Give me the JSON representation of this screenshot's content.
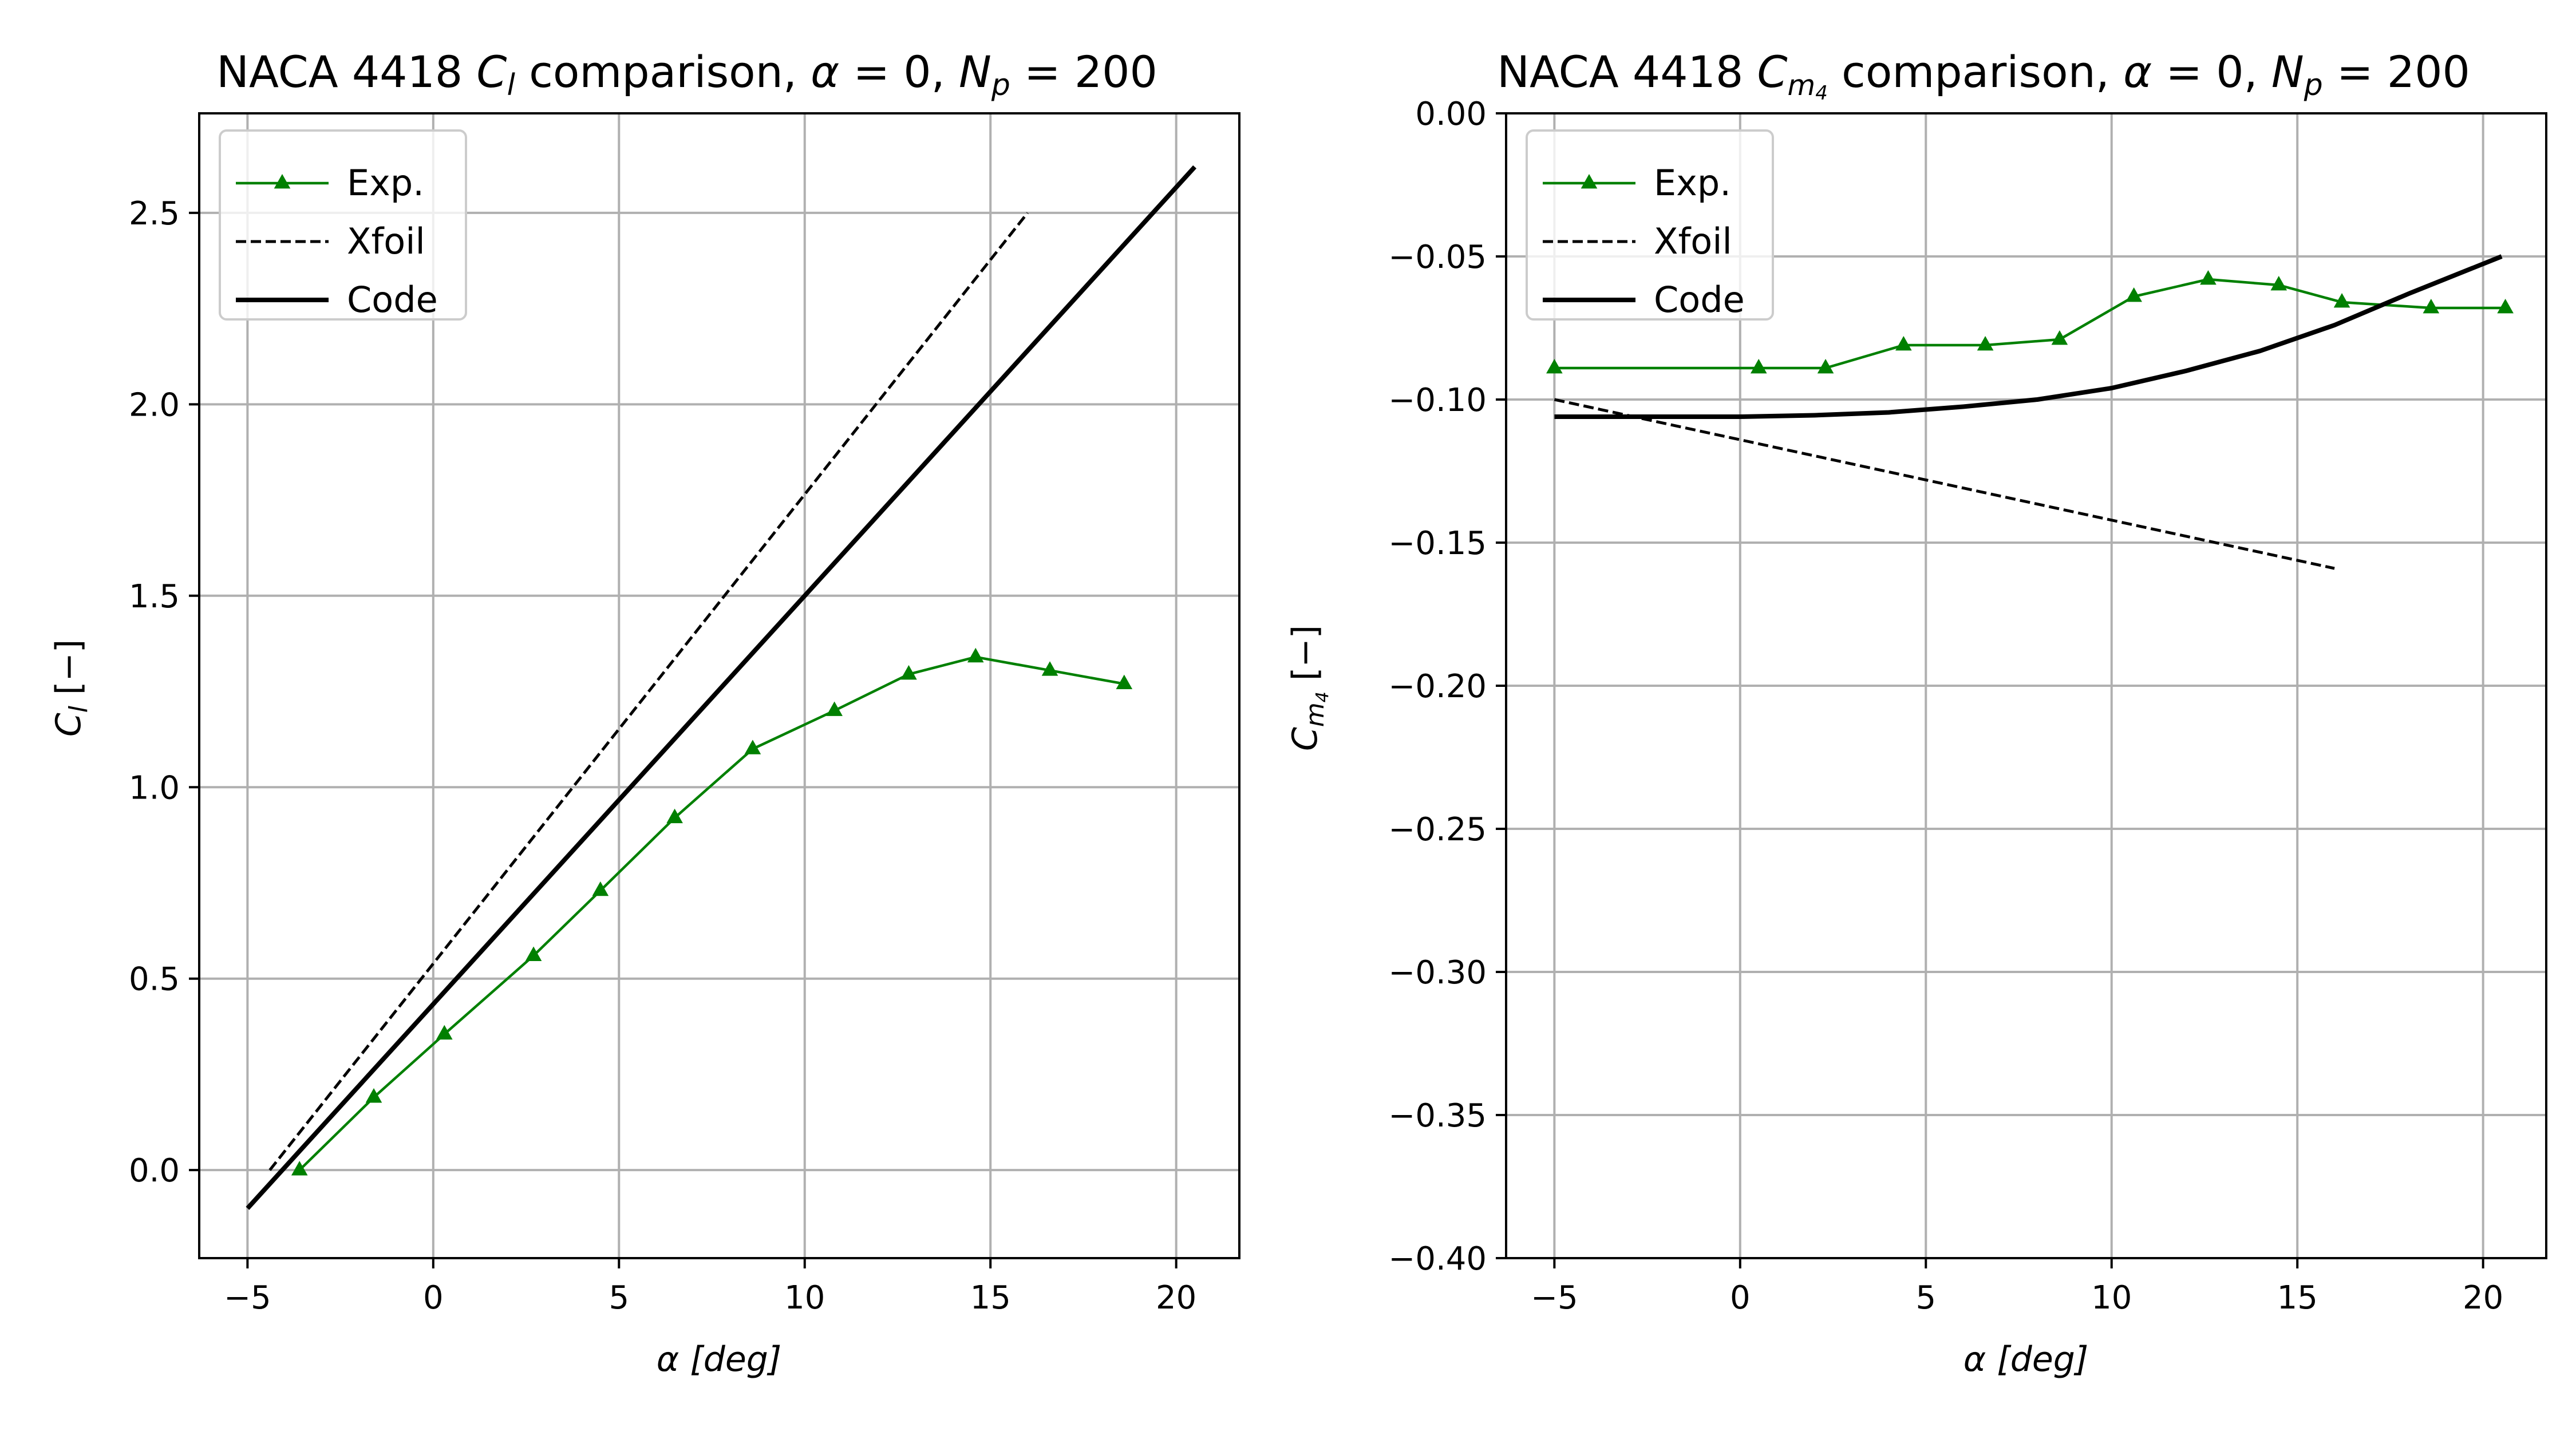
{
  "chart_data": [
    {
      "type": "line",
      "title": {
        "prefix": "NACA 4418 ",
        "sym": "C",
        "sub": "l",
        "mid": " comparison, ",
        "alpha": "α",
        "eq": " = 0, ",
        "np": "N",
        "np_sub": "p",
        "np_eq": " = 200"
      },
      "xlabel": {
        "sym": "α",
        "unit": "[deg]"
      },
      "ylabel": {
        "sym": "C",
        "sub": "l",
        "unit": " [−]"
      },
      "xlim": [
        -6.3,
        21.7
      ],
      "ylim": [
        -0.23,
        2.76
      ],
      "xticks": [
        -5,
        0,
        5,
        10,
        15,
        20
      ],
      "xtick_labels": [
        "−5",
        "0",
        "5",
        "10",
        "15",
        "20"
      ],
      "yticks": [
        0.0,
        0.5,
        1.0,
        1.5,
        2.0,
        2.5
      ],
      "ytick_labels": [
        "0.0",
        "0.5",
        "1.0",
        "1.5",
        "2.0",
        "2.5"
      ],
      "grid": true,
      "legend_position": "top-left",
      "series": [
        {
          "name": "Exp.",
          "color": "#008000",
          "style": "solid-triangle",
          "x": [
            -3.6,
            -1.6,
            0.3,
            2.7,
            4.5,
            6.5,
            8.6,
            10.8,
            12.8,
            14.6,
            16.6,
            18.6
          ],
          "y": [
            0.0,
            0.19,
            0.355,
            0.56,
            0.73,
            0.92,
            1.1,
            1.2,
            1.295,
            1.34,
            1.305,
            1.27
          ]
        },
        {
          "name": "Xfoil",
          "color": "#000000",
          "style": "dashed",
          "x": [
            -4.4,
            16.0
          ],
          "y": [
            0.0,
            2.5
          ]
        },
        {
          "name": "Code",
          "color": "#000000",
          "style": "solid-thick",
          "x": [
            -5.0,
            20.5
          ],
          "y": [
            -0.1,
            2.62
          ]
        }
      ]
    },
    {
      "type": "line",
      "title": {
        "prefix": "NACA 4418 ",
        "sym": "C",
        "sub": "m",
        "subsub": "4",
        "mid": " comparison, ",
        "alpha": "α",
        "eq": " = 0, ",
        "np": "N",
        "np_sub": "p",
        "np_eq": " = 200"
      },
      "xlabel": {
        "sym": "α",
        "unit": "[deg]"
      },
      "ylabel": {
        "sym": "C",
        "sub": "m",
        "subsub": "4",
        "unit": " [−]"
      },
      "xlim": [
        -6.3,
        21.7
      ],
      "ylim": [
        -0.4,
        0.0
      ],
      "xticks": [
        -5,
        0,
        5,
        10,
        15,
        20
      ],
      "xtick_labels": [
        "−5",
        "0",
        "5",
        "10",
        "15",
        "20"
      ],
      "yticks": [
        0.0,
        -0.05,
        -0.1,
        -0.15,
        -0.2,
        -0.25,
        -0.3,
        -0.35,
        -0.4
      ],
      "ytick_labels": [
        "0.00",
        "−0.05",
        "−0.10",
        "−0.15",
        "−0.20",
        "−0.25",
        "−0.30",
        "−0.35",
        "−0.40"
      ],
      "grid": true,
      "legend_position": "top-left",
      "series": [
        {
          "name": "Exp.",
          "color": "#008000",
          "style": "solid-triangle",
          "x": [
            -5.0,
            0.5,
            2.3,
            4.4,
            6.6,
            8.6,
            10.6,
            12.6,
            14.5,
            16.2,
            18.6,
            20.6
          ],
          "y": [
            -0.089,
            -0.089,
            -0.089,
            -0.081,
            -0.081,
            -0.079,
            -0.064,
            -0.058,
            -0.06,
            -0.066,
            -0.068,
            -0.068
          ]
        },
        {
          "name": "Xfoil",
          "color": "#000000",
          "style": "dashed",
          "x": [
            -5.0,
            16.0
          ],
          "y": [
            -0.1,
            -0.159
          ]
        },
        {
          "name": "Code",
          "color": "#000000",
          "style": "solid-thick",
          "x": [
            -5.0,
            0.0,
            2.0,
            4.0,
            6.0,
            8.0,
            10.0,
            12.0,
            14.0,
            16.0,
            18.0,
            20.5
          ],
          "y": [
            -0.106,
            -0.106,
            -0.1055,
            -0.1045,
            -0.1025,
            -0.1,
            -0.096,
            -0.09,
            -0.083,
            -0.074,
            -0.063,
            -0.05
          ]
        }
      ]
    }
  ]
}
